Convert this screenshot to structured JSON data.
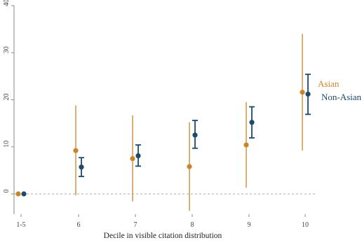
{
  "chart_data": {
    "type": "scatter",
    "subtype": "point-with-error-bars",
    "title": "",
    "xlabel": "Decile in visible citation distribution",
    "ylabel": "",
    "categories": [
      "1-5",
      "6",
      "7",
      "8",
      "9",
      "10"
    ],
    "ylim": [
      -4,
      40
    ],
    "yticks": [
      0,
      10,
      20,
      30,
      40
    ],
    "zero_reference_line": true,
    "grid": false,
    "legend_position": "right, beside final points",
    "series": [
      {
        "name": "Asian",
        "color": "#C8862A",
        "points": [
          {
            "x": "1-5",
            "y": 0,
            "low": 0,
            "high": 0
          },
          {
            "x": "6",
            "y": 9.2,
            "low": -0.3,
            "high": 18.8
          },
          {
            "x": "7",
            "y": 7.5,
            "low": -1.6,
            "high": 16.7
          },
          {
            "x": "8",
            "y": 5.8,
            "low": -3.6,
            "high": 15.2
          },
          {
            "x": "9",
            "y": 10.4,
            "low": 1.3,
            "high": 19.5
          },
          {
            "x": "10",
            "y": 21.6,
            "low": 9.2,
            "high": 34.0
          }
        ]
      },
      {
        "name": "Non-Asian",
        "color": "#1B4A6B",
        "points": [
          {
            "x": "1-5",
            "y": 0,
            "low": 0,
            "high": 0
          },
          {
            "x": "6",
            "y": 5.7,
            "low": 3.7,
            "high": 7.7
          },
          {
            "x": "7",
            "y": 8.1,
            "low": 5.9,
            "high": 10.4
          },
          {
            "x": "8",
            "y": 12.5,
            "low": 9.7,
            "high": 15.6
          },
          {
            "x": "9",
            "y": 15.2,
            "low": 11.9,
            "high": 18.5
          },
          {
            "x": "10",
            "y": 21.2,
            "low": 16.9,
            "high": 25.4
          }
        ]
      }
    ]
  }
}
